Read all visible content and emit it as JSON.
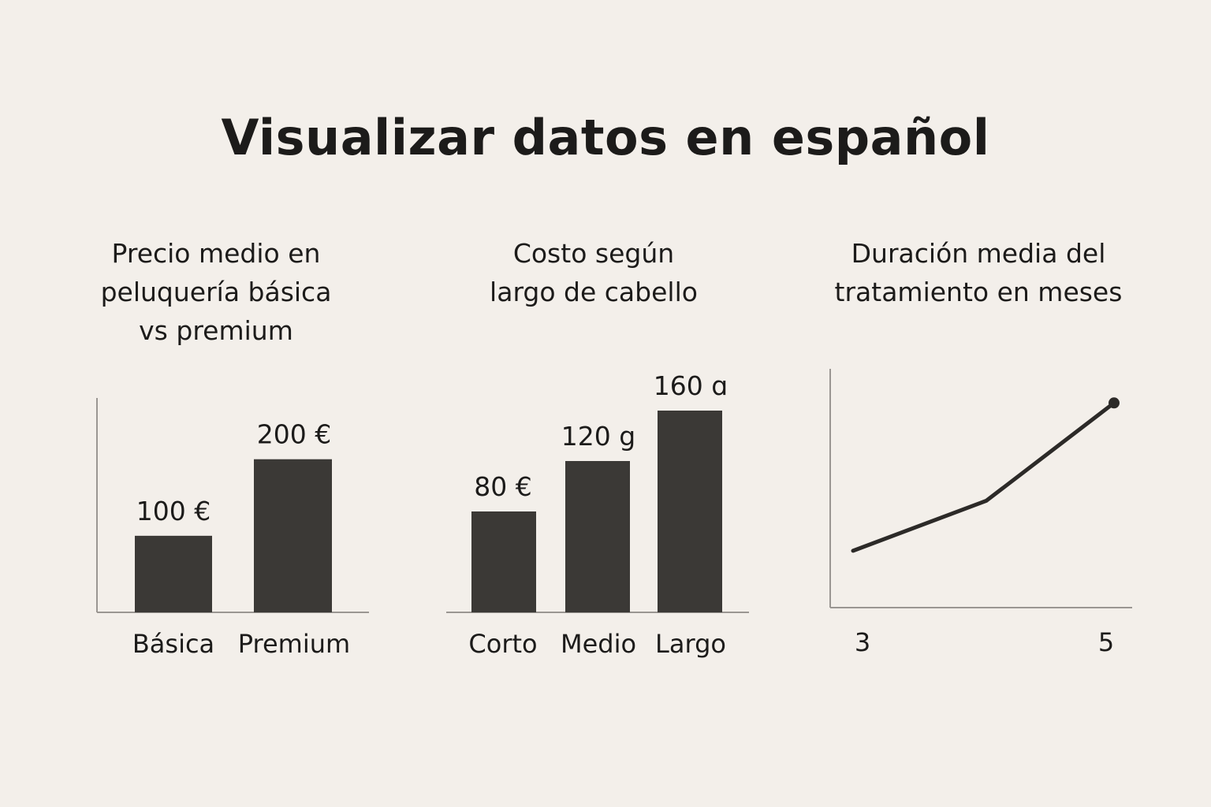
{
  "page": {
    "title": "Visualizar datos en español"
  },
  "colors": {
    "background": "#f3efea",
    "bar": "#3b3936",
    "axis": "#9a9692",
    "line": "#2c2a28",
    "text": "#1c1b1a"
  },
  "chart_data": [
    {
      "type": "bar",
      "title": "Precio medio en\npeluquería básica\nvs premium",
      "categories": [
        "Básica",
        "Premium"
      ],
      "values": [
        100,
        200
      ],
      "data_labels": [
        "100 €",
        "200 €"
      ],
      "ylim": [
        0,
        280
      ],
      "xlabel": "",
      "ylabel": "",
      "grid": false
    },
    {
      "type": "bar",
      "title": "Costo según\nlargo de cabello",
      "categories": [
        "Corto",
        "Medio",
        "Largo"
      ],
      "values": [
        80,
        120,
        160
      ],
      "data_labels": [
        "80 €",
        "120 g",
        "160 ɑ"
      ],
      "ylim": [
        0,
        170
      ],
      "xlabel": "",
      "ylabel": "",
      "grid": false
    },
    {
      "type": "line",
      "title": "Duración media del\ntratamiento en meses",
      "x_tick_labels": [
        "3",
        "5"
      ],
      "series": [
        {
          "values": [
            3,
            3.88,
            5.6
          ]
        }
      ],
      "ylim": [
        2,
        6.2
      ],
      "xlabel": "",
      "ylabel": "",
      "grid": false
    }
  ]
}
